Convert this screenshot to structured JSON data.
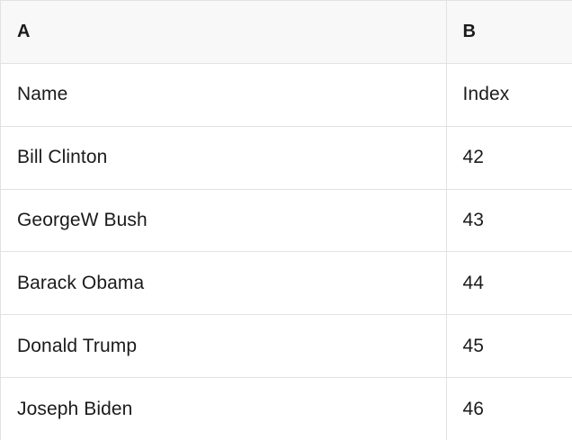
{
  "table": {
    "columns": [
      {
        "label": "A"
      },
      {
        "label": "B"
      }
    ],
    "rows": [
      {
        "a": "Name",
        "b": "Index"
      },
      {
        "a": "Bill Clinton",
        "b": "42"
      },
      {
        "a": "GeorgeW Bush",
        "b": "43"
      },
      {
        "a": "Barack Obama",
        "b": "44"
      },
      {
        "a": "Donald Trump",
        "b": "45"
      },
      {
        "a": "Joseph Biden",
        "b": "46"
      }
    ]
  },
  "colors": {
    "header_bg": "#f8f8f8",
    "row_bg": "#ffffff",
    "border": "#e2e2e2",
    "text": "#1b1b1b"
  }
}
